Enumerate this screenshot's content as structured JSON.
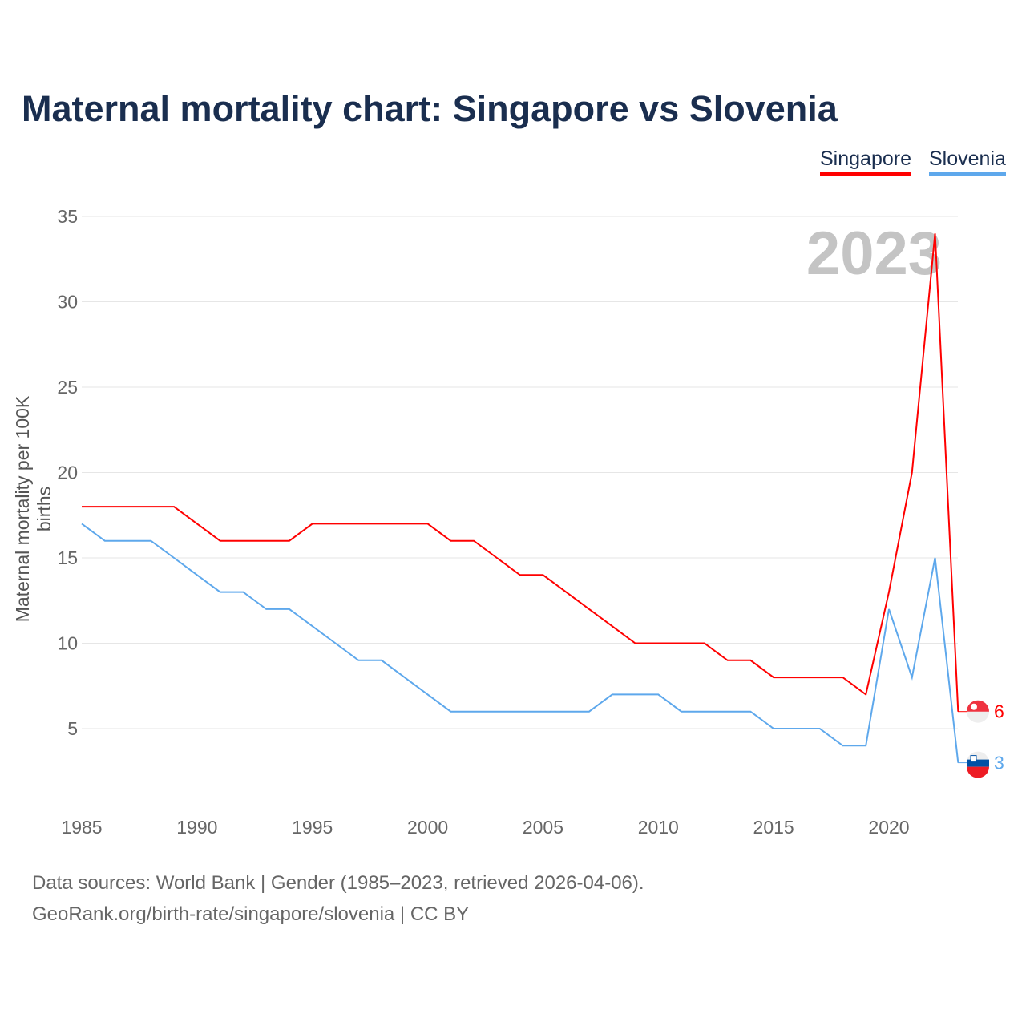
{
  "chart_data": {
    "type": "line",
    "title": "Maternal mortality chart: Singapore vs Slovenia",
    "xlabel": "",
    "ylabel": "Maternal mortality per 100K births",
    "xlim": [
      1985,
      2023
    ],
    "ylim": [
      1.5,
      35
    ],
    "x_ticks": [
      1985,
      1990,
      1995,
      2000,
      2005,
      2010,
      2015,
      2020
    ],
    "y_ticks": [
      5,
      10,
      15,
      20,
      25,
      30,
      35
    ],
    "grid": true,
    "legend_placement": "top-right",
    "year_label": "2023",
    "x": [
      1985,
      1986,
      1987,
      1988,
      1989,
      1990,
      1991,
      1992,
      1993,
      1994,
      1995,
      1996,
      1997,
      1998,
      1999,
      2000,
      2001,
      2002,
      2003,
      2004,
      2005,
      2006,
      2007,
      2008,
      2009,
      2010,
      2011,
      2012,
      2013,
      2014,
      2015,
      2016,
      2017,
      2018,
      2019,
      2020,
      2021,
      2022,
      2023
    ],
    "series": [
      {
        "name": "Singapore",
        "color": "#ff0000",
        "end_label": "6",
        "values": [
          18,
          18,
          18,
          18,
          18,
          17,
          16,
          16,
          16,
          16,
          17,
          17,
          17,
          17,
          17,
          17,
          16,
          16,
          15,
          14,
          14,
          13,
          12,
          11,
          10,
          10,
          10,
          10,
          9,
          9,
          8,
          8,
          8,
          8,
          7,
          13,
          20,
          34,
          6
        ]
      },
      {
        "name": "Slovenia",
        "color": "#5ea8ec",
        "end_label": "3",
        "values": [
          17,
          16,
          16,
          16,
          15,
          14,
          13,
          13,
          12,
          12,
          11,
          10,
          9,
          9,
          8,
          7,
          6,
          6,
          6,
          6,
          6,
          6,
          6,
          7,
          7,
          7,
          6,
          6,
          6,
          6,
          5,
          5,
          5,
          4,
          4,
          12,
          8,
          15,
          3
        ]
      }
    ]
  },
  "footer": {
    "line1": "Data sources: World Bank | Gender (1985–2023, retrieved 2026-04-06).",
    "line2": "GeoRank.org/birth-rate/singapore/slovenia | CC BY"
  }
}
